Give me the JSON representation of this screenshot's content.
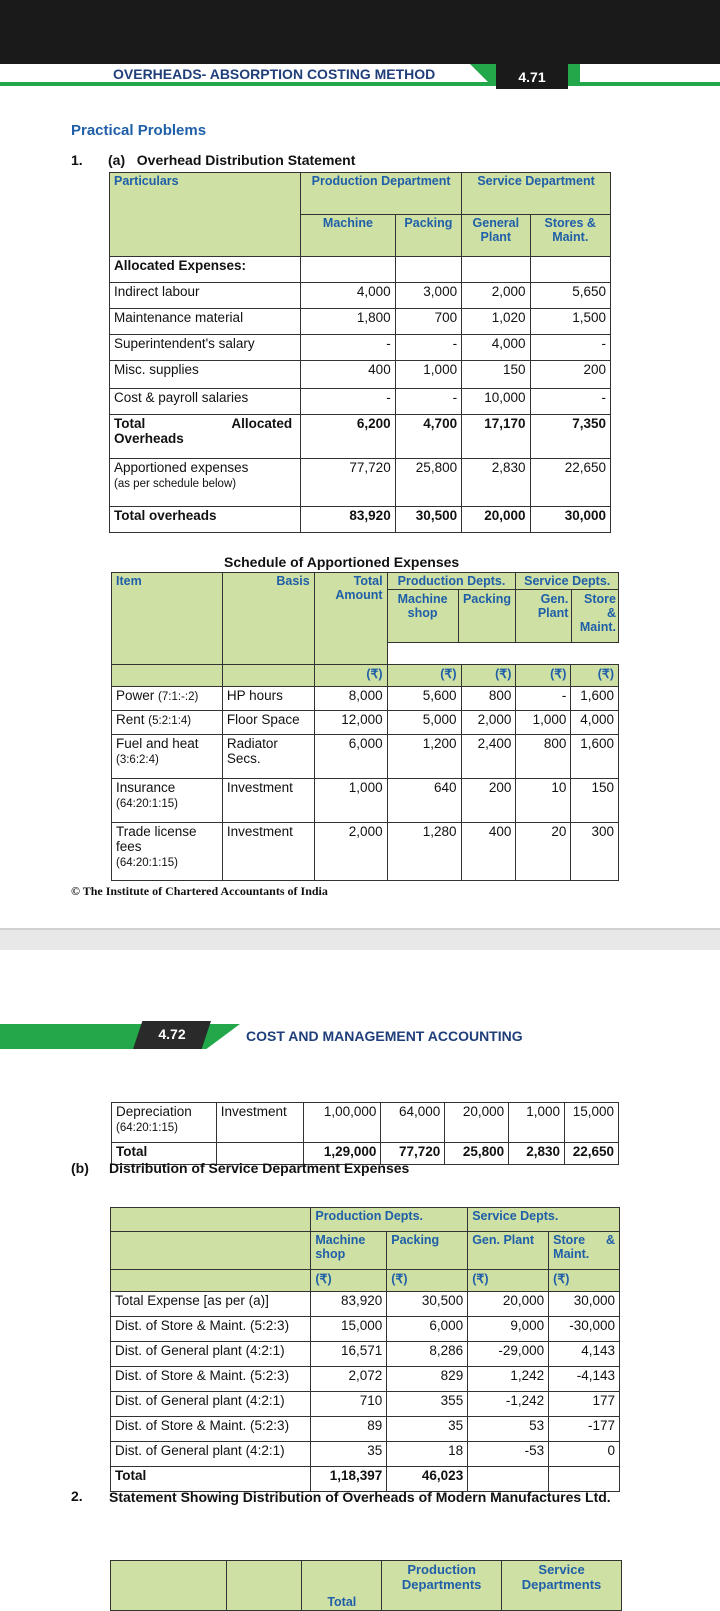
{
  "header1": {
    "title": "OVERHEADS- ABSORPTION COSTING METHOD",
    "page": "4.71"
  },
  "section_title": "Practical Problems",
  "q1": {
    "num": "1.",
    "part": "(a)",
    "title": "Overhead Distribution Statement"
  },
  "ods": {
    "h_particulars": "Particulars",
    "h_production": "Production Department",
    "h_service": "Service Department",
    "h_machine": "Machine",
    "h_packing": "Packing",
    "h_general": "General Plant",
    "h_stores": "Stores & Maint.",
    "allocated_label": "Allocated Expenses:",
    "rows": [
      {
        "label": "Indirect labour",
        "v": [
          "4,000",
          "3,000",
          "2,000",
          "5,650"
        ]
      },
      {
        "label": "Maintenance material",
        "v": [
          "1,800",
          "700",
          "1,020",
          "1,500"
        ]
      },
      {
        "label": "Superintendent's salary",
        "v": [
          "-",
          "-",
          "4,000",
          "-"
        ]
      },
      {
        "label": "Misc. supplies",
        "v": [
          "400",
          "1,000",
          "150",
          "200"
        ]
      },
      {
        "label": "Cost & payroll salaries",
        "v": [
          "-",
          "-",
          "10,000",
          "-"
        ]
      }
    ],
    "total_alloc": {
      "label_a": "Total",
      "label_b": "Allocated",
      "label_c": "Overheads",
      "v": [
        "6,200",
        "4,700",
        "17,170",
        "7,350"
      ]
    },
    "apportioned": {
      "label": "Apportioned expenses",
      "sub": "(as per schedule below)",
      "v": [
        "77,720",
        "25,800",
        "2,830",
        "22,650"
      ]
    },
    "total_oh": {
      "label": "Total overheads",
      "v": [
        "83,920",
        "30,500",
        "20,000",
        "30,000"
      ]
    }
  },
  "schedule": {
    "title": "Schedule of Apportioned Expenses",
    "h_item": "Item",
    "h_basis": "Basis",
    "h_total": "Total Amount",
    "h_prod": "Production Depts.",
    "h_serv": "Service Depts.",
    "h_machine": "Machine shop",
    "h_packing": "Packing",
    "h_gen": "Gen. Plant",
    "h_store": "Store & Maint.",
    "rupee": "(₹)",
    "rows": [
      {
        "item": "Power",
        "ratio": "(7:1:-:2)",
        "basis": "HP hours",
        "v": [
          "8,000",
          "5,600",
          "800",
          "-",
          "1,600"
        ]
      },
      {
        "item": "Rent",
        "ratio": "(5:2:1:4)",
        "basis": "Floor Space",
        "v": [
          "12,000",
          "5,000",
          "2,000",
          "1,000",
          "4,000"
        ]
      },
      {
        "item": "Fuel and heat",
        "ratio": "(3:6:2:4)",
        "basis": "Radiator Secs.",
        "v": [
          "6,000",
          "1,200",
          "2,400",
          "800",
          "1,600"
        ]
      },
      {
        "item": "Insurance",
        "ratio": "(64:20:1:15)",
        "basis": "Investment",
        "v": [
          "1,000",
          "640",
          "200",
          "10",
          "150"
        ]
      },
      {
        "item": "Trade license fees",
        "ratio": "(64:20:1:15)",
        "basis": "Investment",
        "v": [
          "2,000",
          "1,280",
          "400",
          "20",
          "300"
        ]
      }
    ],
    "cont_rows": [
      {
        "item": "Depreciation",
        "ratio": "(64:20:1:15)",
        "basis": "Investment",
        "v": [
          "1,00,000",
          "64,000",
          "20,000",
          "1,000",
          "15,000"
        ]
      }
    ],
    "total": {
      "label": "Total",
      "v": [
        "1,29,000",
        "77,720",
        "25,800",
        "2,830",
        "22,650"
      ]
    }
  },
  "footer": "© The Institute of Chartered Accountants of India",
  "header2": {
    "page": "4.72",
    "title": "COST AND MANAGEMENT ACCOUNTING"
  },
  "partb": {
    "label": "(b)",
    "title": "Distribution of Service Department Expenses"
  },
  "dist": {
    "h_prod": "Production Depts.",
    "h_serv": "Service Depts.",
    "h_machine": "Machine shop",
    "h_packing": "Packing",
    "h_gen": "Gen. Plant",
    "h_store": "Store & Maint.",
    "rupee": "(₹)",
    "rows": [
      {
        "label": "Total Expense [as per (a)]",
        "v": [
          "83,920",
          "30,500",
          "20,000",
          "30,000"
        ]
      },
      {
        "label": "Dist. of Store & Maint. (5:2:3)",
        "v": [
          "15,000",
          "6,000",
          "9,000",
          "-30,000"
        ]
      },
      {
        "label": "Dist. of General plant (4:2:1)",
        "v": [
          "16,571",
          "8,286",
          "-29,000",
          "4,143"
        ]
      },
      {
        "label": "Dist. of Store & Maint. (5:2:3)",
        "v": [
          "2,072",
          "829",
          "1,242",
          "-4,143"
        ]
      },
      {
        "label": "Dist. of General plant (4:2:1)",
        "v": [
          "710",
          "355",
          "-1,242",
          "177"
        ]
      },
      {
        "label": "Dist. of Store & Maint. (5:2:3)",
        "v": [
          "89",
          "35",
          "53",
          "-177"
        ]
      },
      {
        "label": "Dist. of General plant (4:2:1)",
        "v": [
          "35",
          "18",
          "-53",
          "0"
        ]
      }
    ],
    "total": {
      "label": "Total",
      "v": [
        "1,18,397",
        "46,023",
        "",
        ""
      ]
    }
  },
  "q2": {
    "num": "2.",
    "title": "Statement Showing Distribution of Overheads of Modern Manufactures Ltd."
  },
  "q2table": {
    "h_total": "Total",
    "h_prod": "Production Departments",
    "h_serv": "Service Departments"
  }
}
